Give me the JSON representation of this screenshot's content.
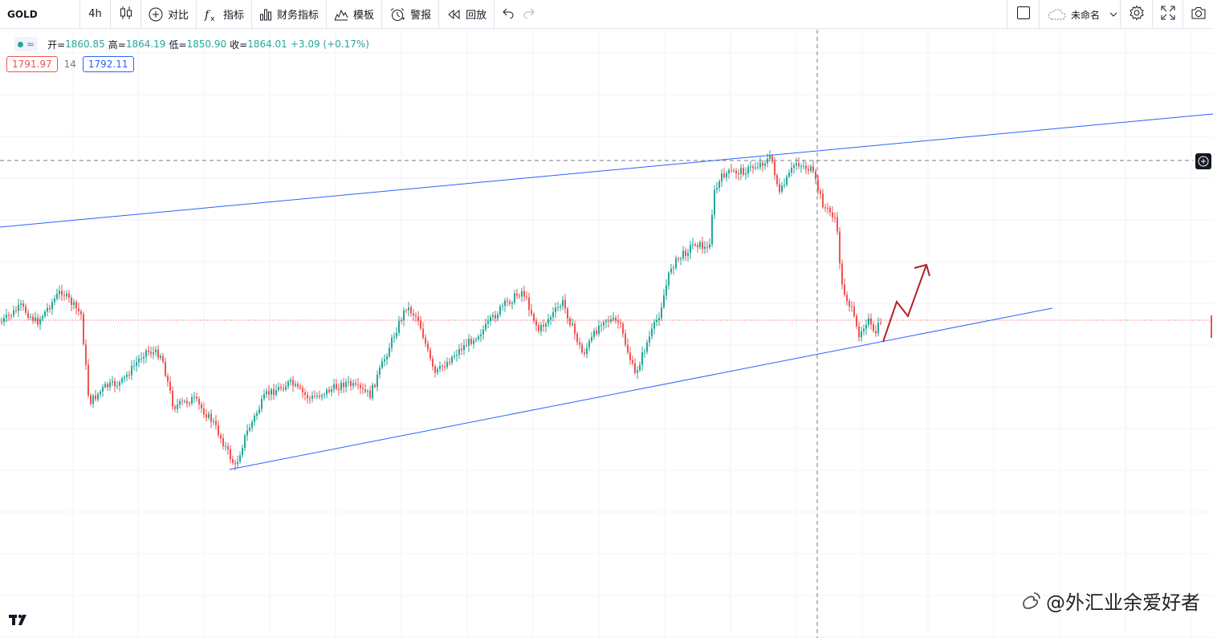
{
  "toolbar": {
    "symbol": "GOLD",
    "interval": "4h",
    "compare_label": "对比",
    "indicators_label": "指标",
    "financials_label": "财务指标",
    "templates_label": "模板",
    "alert_label": "警报",
    "replay_label": "回放",
    "layout_name": "未命名"
  },
  "legend": {
    "open_key": "开=",
    "open": "1860.85",
    "high_key": "高=",
    "high": "1864.19",
    "low_key": "低=",
    "low": "1850.90",
    "close_key": "收=",
    "close": "1864.01",
    "change": "+3.09 (+0.17%)"
  },
  "indicator": {
    "value_red": "1791.97",
    "length": "14",
    "value_blue": "1792.11"
  },
  "watermark": {
    "text": "@外汇业余爱好者"
  },
  "colors": {
    "up": "#26a69a",
    "down": "#ef5350",
    "trendline": "#2962ff",
    "annotation_arrow": "#b22222",
    "grid": "#f0f3fa"
  },
  "icons": [
    "candles-icon",
    "plus-circle-icon",
    "fx-icon",
    "bar-chart-icon",
    "templates-icon",
    "alarm-icon",
    "replay-icon",
    "undo-icon",
    "redo-icon",
    "square-icon",
    "cloud-icon",
    "chevron-down-icon",
    "gear-icon",
    "fullscreen-icon",
    "camera-icon",
    "plus-icon",
    "tradingview-logo-icon",
    "weibo-icon"
  ]
}
